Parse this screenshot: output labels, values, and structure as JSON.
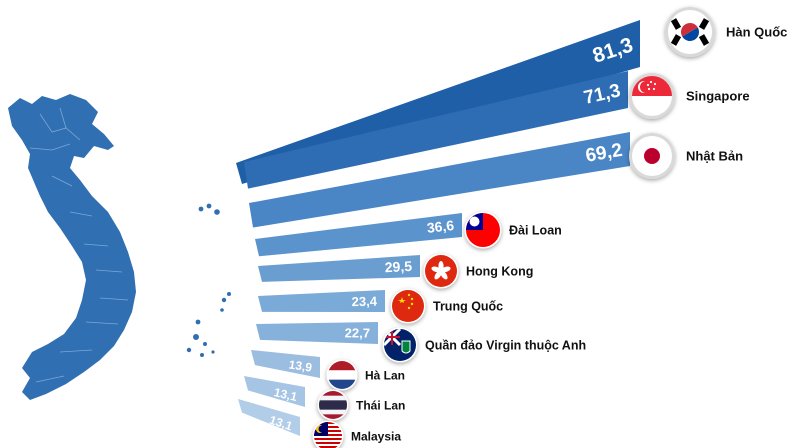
{
  "chart_data": {
    "type": "bar",
    "categories": [
      "Hàn Quốc",
      "Singapore",
      "Nhật Bản",
      "Đài Loan",
      "Hong Kong",
      "Trung Quốc",
      "Quần đảo Virgin thuộc Anh",
      "Hà Lan",
      "Thái Lan",
      "Malaysia"
    ],
    "values": [
      81.3,
      71.3,
      69.2,
      36.6,
      29.5,
      23.4,
      22.7,
      13.9,
      13.1,
      13.1
    ],
    "value_labels": [
      "81,3",
      "71,3",
      "69,2",
      "36,6",
      "29,5",
      "23,4",
      "22,7",
      "13,9",
      "13,1",
      "13,1"
    ],
    "flag_icons": [
      "south-korea-flag-icon",
      "singapore-flag-icon",
      "japan-flag-icon",
      "taiwan-flag-icon",
      "hong-kong-flag-icon",
      "china-flag-icon",
      "british-virgin-islands-flag-icon",
      "netherlands-flag-icon",
      "thailand-flag-icon",
      "malaysia-flag-icon"
    ],
    "bar_colors": [
      "#1f5fa8",
      "#2e6db4",
      "#4a86c5",
      "#5b93cc",
      "#6a9ed1",
      "#7aaad7",
      "#86b1da",
      "#9bbde0",
      "#a6c5e4",
      "#b1cde8"
    ],
    "map_color": "#2f6fb2",
    "map_icon": "vietnam-map-icon",
    "xlim": [
      0,
      85
    ],
    "legend": "none",
    "grid": false
  }
}
